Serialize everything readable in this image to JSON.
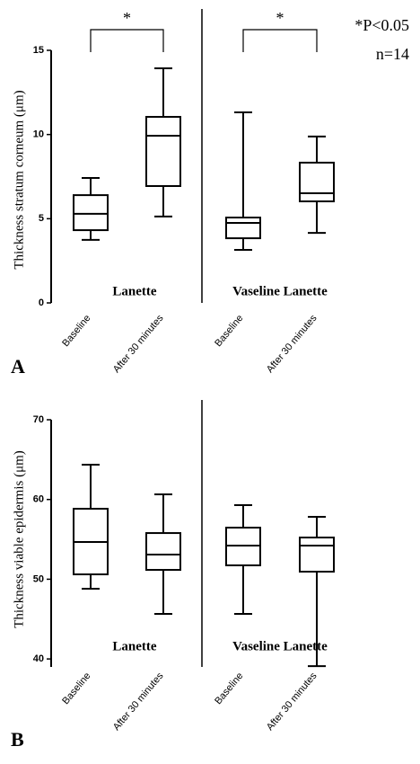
{
  "chart_data": [
    {
      "type": "box",
      "panel": "A",
      "y_label": "Thickness stratum corneum (μm)",
      "categories": [
        "Baseline",
        "After 30 minutes",
        "Baseline",
        "After 30 minutes"
      ],
      "groups": [
        "Lanette",
        "Vaseline  Lanette"
      ],
      "boxes": [
        {
          "min": 3.74,
          "q1": 4.32,
          "median": 5.29,
          "q3": 6.4,
          "max": 7.42
        },
        {
          "min": 5.13,
          "q1": 6.94,
          "median": 9.93,
          "q3": 11.05,
          "max": 13.93
        },
        {
          "min": 3.15,
          "q1": 3.84,
          "median": 4.75,
          "q3": 5.07,
          "max": 11.32
        },
        {
          "min": 4.16,
          "q1": 6.03,
          "median": 6.51,
          "q3": 8.33,
          "max": 9.88
        }
      ],
      "significance_marks": [
        "*",
        "*"
      ],
      "notes": [
        "*P<0.05",
        "n=14"
      ],
      "ylim": [
        0,
        15
      ],
      "yticks": [
        0,
        5,
        10,
        15
      ],
      "color": "#000000"
    },
    {
      "type": "box",
      "panel": "B",
      "y_label": "Thickness viable epidermis (μm)",
      "categories": [
        "Baseline",
        "After 30 minutes",
        "Baseline",
        "After 30 minutes"
      ],
      "groups": [
        "Lanette",
        "Vaseline  Lanette"
      ],
      "boxes": [
        {
          "min": 48.81,
          "q1": 50.61,
          "median": 54.67,
          "q3": 58.84,
          "max": 64.36
        },
        {
          "min": 45.65,
          "q1": 51.17,
          "median": 53.09,
          "q3": 55.79,
          "max": 60.64
        },
        {
          "min": 45.65,
          "q1": 51.74,
          "median": 54.22,
          "q3": 56.47,
          "max": 59.29
        },
        {
          "min": 39.1,
          "q1": 50.95,
          "median": 54.22,
          "q3": 55.23,
          "max": 57.82
        }
      ],
      "ylim": [
        39,
        70
      ],
      "yticks": [
        40,
        50,
        60,
        70
      ],
      "color": "#000000"
    }
  ]
}
